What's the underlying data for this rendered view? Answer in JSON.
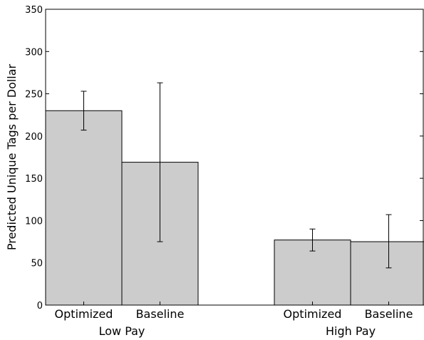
{
  "chart_data": {
    "type": "bar",
    "ylabel": "Predicted Unique Tags per Dollar",
    "xlabel": "",
    "ylim": [
      0,
      350
    ],
    "yticks": [
      0,
      50,
      100,
      150,
      200,
      250,
      300,
      350
    ],
    "groups": [
      {
        "label": "Low Pay",
        "bars": [
          {
            "category": "Optimized",
            "value": 230,
            "err_low": 207,
            "err_high": 253
          },
          {
            "category": "Baseline",
            "value": 169,
            "err_low": 75,
            "err_high": 263
          }
        ]
      },
      {
        "label": "High Pay",
        "bars": [
          {
            "category": "Optimized",
            "value": 77,
            "err_low": 64,
            "err_high": 90
          },
          {
            "category": "Baseline",
            "value": 75,
            "err_low": 44,
            "err_high": 107
          }
        ]
      }
    ],
    "bar_color": "#cccccc",
    "edge_color": "#000000",
    "grid": false,
    "legend": "none"
  }
}
